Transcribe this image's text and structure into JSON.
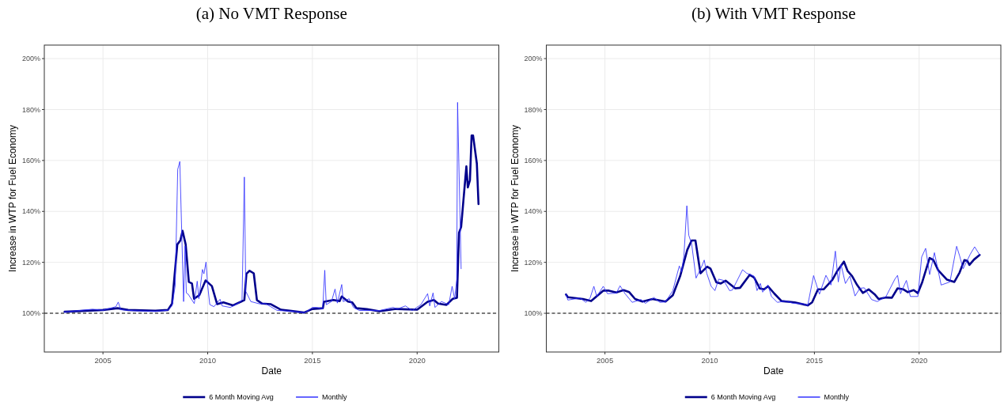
{
  "chart_data": [
    {
      "type": "line",
      "title": "(a) No VMT Response",
      "xlabel": "Date",
      "ylabel": "Increase in WTP for Fuel Economy",
      "xlim": [
        2002.2,
        2023.9
      ],
      "ylim": [
        84.8,
        205.3
      ],
      "xticks": [
        2005,
        2010,
        2015,
        2020
      ],
      "yticks": [
        {
          "value": 100,
          "label": "100%"
        },
        {
          "value": 120,
          "label": "120%"
        },
        {
          "value": 140,
          "label": "140%"
        },
        {
          "value": 160,
          "label": "160%"
        },
        {
          "value": 180,
          "label": "180%"
        },
        {
          "value": 200,
          "label": "200%"
        }
      ],
      "grid": true,
      "legend": "bottom",
      "ref_lines": [
        {
          "axis": "y",
          "value": 100,
          "color": "#000000",
          "line_style": "dashed"
        }
      ],
      "series": [
        {
          "name": "6 Month Moving Avg",
          "color": "#00008b",
          "x": [
            2003.17,
            2005,
            2005.7,
            2006.2,
            2007.5,
            2008.1,
            2008.3,
            2008.55,
            2008.7,
            2008.8,
            2008.95,
            2009.1,
            2009.25,
            2009.35,
            2009.6,
            2009.9,
            2010.2,
            2010.45,
            2010.75,
            2011.2,
            2011.6,
            2011.75,
            2011.85,
            2012,
            2012.2,
            2012.35,
            2012.6,
            2013,
            2013.5,
            2014,
            2014.6,
            2015,
            2015.5,
            2015.55,
            2016,
            2016.3,
            2016.4,
            2016.7,
            2016.9,
            2017.1,
            2017.6,
            2018.2,
            2019,
            2020,
            2020.5,
            2020.8,
            2021,
            2021.4,
            2021.7,
            2021.9,
            2022,
            2022.1,
            2022.35,
            2022.42,
            2022.52,
            2022.6,
            2022.67,
            2022.85,
            2022.93
          ],
          "values": [
            100.6,
            101.3,
            102,
            101.3,
            101,
            101.3,
            103.8,
            127,
            128.7,
            132.4,
            127,
            112.3,
            111.7,
            105.7,
            107.1,
            112.9,
            110.7,
            103.6,
            104.3,
            103.1,
            104.6,
            105.2,
            115.5,
            116.7,
            115.7,
            105.2,
            103.8,
            103.6,
            101.4,
            100.9,
            100.3,
            101.7,
            102,
            104.5,
            105.2,
            104.8,
            106.6,
            104.6,
            104.3,
            102,
            101.6,
            100.8,
            101.7,
            101.4,
            104.5,
            105.2,
            103.8,
            103.3,
            105.7,
            106.1,
            131.6,
            133.9,
            157.7,
            149.4,
            152.2,
            169.8,
            169.8,
            158.8,
            142.9
          ]
        },
        {
          "name": "Monthly",
          "color": "#3333ff",
          "x": [
            2003.17,
            2004.5,
            2005,
            2005.62,
            2005.73,
            2005.85,
            2006.5,
            2007.5,
            2008.1,
            2008.3,
            2008.45,
            2008.57,
            2008.67,
            2008.85,
            2008.92,
            2008.98,
            2009.07,
            2009.36,
            2009.5,
            2009.58,
            2009.75,
            2009.82,
            2009.92,
            2010,
            2010.1,
            2010.3,
            2010.59,
            2010.69,
            2011.08,
            2011.47,
            2011.64,
            2011.75,
            2011.82,
            2012.06,
            2012.48,
            2012.76,
            2013.32,
            2014.02,
            2014.65,
            2015,
            2015.21,
            2015.49,
            2015.59,
            2015.66,
            2015.91,
            2016.08,
            2016.19,
            2016.4,
            2016.47,
            2016.75,
            2016.96,
            2017.24,
            2018.22,
            2018.85,
            2019.06,
            2019.44,
            2019.76,
            2020.18,
            2020.5,
            2020.6,
            2020.76,
            2020.85,
            2021.16,
            2021.51,
            2021.67,
            2021.79,
            2021.89,
            2021.93,
            2022.1
          ],
          "values": [
            100.5,
            101.6,
            101.2,
            102.6,
            104.4,
            101.4,
            101,
            100.8,
            101.2,
            102.9,
            110.9,
            156.5,
            159.6,
            104.6,
            126.4,
            108,
            107.5,
            103.8,
            112.6,
            105.7,
            117.2,
            115.5,
            120.1,
            110.9,
            103.4,
            102.6,
            105.5,
            102.9,
            102.3,
            104,
            105.2,
            153.5,
            108.6,
            104.6,
            103.7,
            103.8,
            101.1,
            100.8,
            100.3,
            102.3,
            102.3,
            101.7,
            116.9,
            103.4,
            104.6,
            109.5,
            104,
            111.3,
            104.6,
            105.7,
            102.3,
            101.1,
            101.1,
            102.3,
            101.7,
            102.9,
            101.1,
            103.4,
            107.7,
            102.9,
            108,
            102.3,
            104.6,
            103.4,
            110.6,
            105.7,
            113.2,
            182.8,
            117.5
          ]
        }
      ]
    },
    {
      "type": "line",
      "title": "(b) With VMT Response",
      "xlabel": "Date",
      "ylabel": "Increase in WTP for Fuel Economy",
      "xlim": [
        2002.2,
        2023.9
      ],
      "ylim": [
        84.8,
        205.3
      ],
      "xticks": [
        2005,
        2010,
        2015,
        2020
      ],
      "yticks": [
        {
          "value": 100,
          "label": "100%"
        },
        {
          "value": 120,
          "label": "120%"
        },
        {
          "value": 140,
          "label": "140%"
        },
        {
          "value": 160,
          "label": "160%"
        },
        {
          "value": 180,
          "label": "180%"
        },
        {
          "value": 200,
          "label": "200%"
        }
      ],
      "grid": true,
      "legend": "bottom",
      "ref_lines": [
        {
          "axis": "y",
          "value": 100,
          "color": "#000000",
          "line_style": "dashed"
        }
      ],
      "series": [
        {
          "name": "6 Month Moving Avg",
          "color": "#00008b",
          "x": [
            2003.14,
            2003.23,
            2003.95,
            2004.34,
            2004.92,
            2005.19,
            2005.54,
            2005.89,
            2006.16,
            2006.44,
            2006.79,
            2007.27,
            2007.89,
            2008.24,
            2008.59,
            2008.93,
            2009.14,
            2009.32,
            2009.56,
            2009.88,
            2010.04,
            2010.32,
            2010.53,
            2010.76,
            2011.22,
            2011.45,
            2011.91,
            2012.12,
            2012.4,
            2012.6,
            2012.78,
            2013.09,
            2013.43,
            2014.06,
            2014.68,
            2014.89,
            2015.17,
            2015.44,
            2015.86,
            2016.07,
            2016.41,
            2016.58,
            2016.8,
            2017.04,
            2017.31,
            2017.59,
            2017.87,
            2018.07,
            2018.42,
            2018.7,
            2018.97,
            2019.25,
            2019.46,
            2019.74,
            2019.94,
            2020.15,
            2020.5,
            2020.68,
            2020.91,
            2021.33,
            2021.68,
            2021.93,
            2022.16,
            2022.3,
            2022.4,
            2022.62,
            2022.89
          ],
          "values": [
            107.4,
            106.3,
            105.6,
            104.8,
            108.9,
            108.9,
            108.2,
            109.1,
            108.3,
            105.6,
            104.6,
            105.6,
            104.6,
            107.1,
            114.6,
            124.9,
            128.6,
            128.6,
            115.7,
            118.3,
            117.5,
            112.1,
            111.7,
            112.8,
            109.8,
            110,
            115.1,
            114,
            109.7,
            109.4,
            110.6,
            107.7,
            104.8,
            104.3,
            103.1,
            104.3,
            109.4,
            109.4,
            113.2,
            116.3,
            120.3,
            116.7,
            114.6,
            111.1,
            108,
            109.4,
            107.5,
            105.6,
            106.2,
            106.1,
            109.8,
            109.4,
            108.3,
            109.1,
            107.9,
            112.3,
            121.7,
            120.9,
            116.9,
            113.2,
            112.3,
            116,
            120.9,
            120.6,
            119,
            121.1,
            122.9
          ]
        },
        {
          "name": "Monthly",
          "color": "#3333ff",
          "x": [
            2003.14,
            2003.23,
            2003.81,
            2004.09,
            2004.29,
            2004.47,
            2004.61,
            2004.92,
            2005.12,
            2005.54,
            2005.72,
            2005.96,
            2006.3,
            2006.72,
            2006.93,
            2007.34,
            2007.62,
            2007.89,
            2008.24,
            2008.55,
            2008.66,
            2008.77,
            2008.91,
            2009,
            2009.14,
            2009.35,
            2009.63,
            2009.74,
            2009.86,
            2010.07,
            2010.25,
            2010.43,
            2010.67,
            2010.95,
            2011.08,
            2011.57,
            2011.77,
            2012.12,
            2012.26,
            2012.42,
            2012.53,
            2012.78,
            2012.95,
            2013.23,
            2013.64,
            2013.99,
            2014.47,
            2014.68,
            2014.96,
            2015.24,
            2015.55,
            2015.79,
            2016,
            2016.14,
            2016.27,
            2016.48,
            2016.69,
            2016.94,
            2017.17,
            2017.38,
            2017.73,
            2018,
            2018.42,
            2018.84,
            2018.97,
            2019.11,
            2019.39,
            2019.58,
            2019.94,
            2020.12,
            2020.31,
            2020.5,
            2020.73,
            2021.05,
            2021.47,
            2021.79,
            2021.93,
            2022.1,
            2022.44,
            2022.65,
            2022.89
          ],
          "values": [
            107.5,
            105.2,
            106,
            104.3,
            106,
            110.6,
            106.6,
            110.6,
            107.7,
            107.9,
            110.8,
            107.7,
            104.3,
            105.4,
            103.9,
            106.2,
            104.3,
            104.5,
            108.9,
            118.6,
            116.3,
            122.6,
            142.2,
            130.7,
            127.2,
            113.8,
            118.6,
            120.9,
            115.7,
            110.6,
            108.9,
            113.4,
            112.9,
            108.9,
            109.1,
            117.1,
            115.7,
            114.6,
            108.9,
            111.7,
            108.3,
            111.1,
            106.6,
            104.3,
            104.8,
            103.9,
            103.7,
            103.1,
            114.8,
            107.5,
            114.9,
            111.1,
            124.4,
            112.3,
            119.2,
            111.7,
            114.6,
            106.8,
            109.8,
            110,
            105.4,
            104.6,
            106.6,
            113.4,
            114.9,
            107.7,
            112.9,
            106.6,
            106.6,
            122.1,
            125.5,
            115.2,
            123.8,
            111.1,
            112.3,
            126.3,
            122.6,
            117.5,
            123.2,
            126.1,
            122.9
          ]
        }
      ]
    }
  ]
}
